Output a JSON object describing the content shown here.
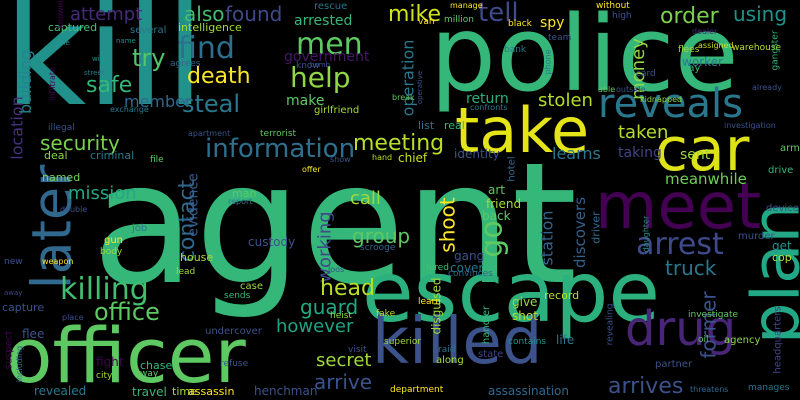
{
  "words": [
    {
      "text": "agent",
      "color": "#35b779"
    },
    {
      "text": "kill",
      "color": "#21918c"
    },
    {
      "text": "police",
      "color": "#35b779"
    },
    {
      "text": "escape",
      "color": "#2cb17e"
    },
    {
      "text": "officer",
      "color": "#5ec962"
    },
    {
      "text": "take",
      "color": "#e5e419"
    },
    {
      "text": "meet",
      "color": "#440154"
    },
    {
      "text": "killed",
      "color": "#3b528b"
    },
    {
      "text": "plan",
      "color": "#22a884"
    },
    {
      "text": "car",
      "color": "#dde318"
    },
    {
      "text": "reveals",
      "color": "#2a788e"
    },
    {
      "text": "later",
      "color": "#31688e"
    },
    {
      "text": "drug",
      "color": "#482576"
    },
    {
      "text": "killing",
      "color": "#42be71"
    },
    {
      "text": "arrest",
      "color": "#3e4a89"
    },
    {
      "text": "information",
      "color": "#2d708e"
    },
    {
      "text": "help",
      "color": "#8fd744"
    },
    {
      "text": "men",
      "color": "#5ec962"
    },
    {
      "text": "find",
      "color": "#2d708e"
    },
    {
      "text": "death",
      "color": "#fde725"
    },
    {
      "text": "steal",
      "color": "#2a788e"
    },
    {
      "text": "safe",
      "color": "#35b779"
    },
    {
      "text": "try",
      "color": "#52c569"
    },
    {
      "text": "security",
      "color": "#7ad151"
    },
    {
      "text": "office",
      "color": "#5ec962"
    },
    {
      "text": "mission",
      "color": "#22a884"
    },
    {
      "text": "meeting",
      "color": "#b8de29"
    },
    {
      "text": "shoot",
      "color": "#fde725"
    },
    {
      "text": "go",
      "color": "#5ec962"
    },
    {
      "text": "contact",
      "color": "#31688e"
    },
    {
      "text": "working",
      "color": "#3e4a89"
    },
    {
      "text": "head",
      "color": "#b8de29"
    },
    {
      "text": "guard",
      "color": "#22a884"
    },
    {
      "text": "however",
      "color": "#20a386"
    },
    {
      "text": "secret",
      "color": "#9fda3a"
    },
    {
      "text": "arrive",
      "color": "#3b528b"
    },
    {
      "text": "arrives",
      "color": "#3b528b"
    },
    {
      "text": "former",
      "color": "#3b528b"
    },
    {
      "text": "truck",
      "color": "#2a788e"
    },
    {
      "text": "group",
      "color": "#5ec962"
    },
    {
      "text": "call",
      "color": "#a0da39"
    },
    {
      "text": "mike",
      "color": "#d2e21b"
    },
    {
      "text": "tell",
      "color": "#3e4a89"
    },
    {
      "text": "order",
      "color": "#7ad151"
    },
    {
      "text": "using",
      "color": "#21918c"
    },
    {
      "text": "money",
      "color": "#8fd744"
    },
    {
      "text": "operation",
      "color": "#2a788e"
    },
    {
      "text": "member",
      "color": "#31688e"
    },
    {
      "text": "attempt",
      "color": "#472a7a"
    },
    {
      "text": "also",
      "color": "#44bf70"
    },
    {
      "text": "found",
      "color": "#3e4a89"
    },
    {
      "text": "location",
      "color": "#46327e"
    },
    {
      "text": "building",
      "color": "#26828e"
    },
    {
      "text": "stolen",
      "color": "#b5de2b"
    },
    {
      "text": "taken",
      "color": "#b5de2b"
    },
    {
      "text": "learns",
      "color": "#2a788e"
    },
    {
      "text": "station",
      "color": "#32648e"
    },
    {
      "text": "discovers",
      "color": "#34608d"
    },
    {
      "text": "evidence",
      "color": "#365c8d"
    },
    {
      "text": "meanwhile",
      "color": "#6ece58"
    },
    {
      "text": "sent",
      "color": "#9fda3a"
    },
    {
      "text": "taking",
      "color": "#414487"
    },
    {
      "text": "arrested",
      "color": "#35b779"
    },
    {
      "text": "government",
      "color": "#481668"
    },
    {
      "text": "make",
      "color": "#5ec962"
    },
    {
      "text": "disguised",
      "color": "#9fda3a"
    },
    {
      "text": "return",
      "color": "#29af7f"
    },
    {
      "text": "identity",
      "color": "#3b528b"
    },
    {
      "text": "chief",
      "color": "#c8e020"
    },
    {
      "text": "girlfriend",
      "color": "#a5db36"
    },
    {
      "text": "list",
      "color": "#2c728e"
    },
    {
      "text": "real",
      "color": "#35b779"
    },
    {
      "text": "friend",
      "color": "#a5db36"
    },
    {
      "text": "back",
      "color": "#5ec962"
    },
    {
      "text": "art",
      "color": "#5ec962"
    },
    {
      "text": "driver",
      "color": "#2e6e8e"
    },
    {
      "text": "gang",
      "color": "#3b528b"
    },
    {
      "text": "cover",
      "color": "#2a788e"
    },
    {
      "text": "hotel",
      "color": "#31688e"
    },
    {
      "text": "captured",
      "color": "#44bf70"
    },
    {
      "text": "intelligence",
      "color": "#a0da39"
    },
    {
      "text": "rescue",
      "color": "#2a788e"
    },
    {
      "text": "several",
      "color": "#2a788e"
    },
    {
      "text": "agrees",
      "color": "#31688e"
    },
    {
      "text": "know",
      "color": "#3b528b"
    },
    {
      "text": "named",
      "color": "#7ad151"
    },
    {
      "text": "criminal",
      "color": "#2a788e"
    },
    {
      "text": "deal",
      "color": "#8fd744"
    },
    {
      "text": "spy",
      "color": "#fde725"
    },
    {
      "text": "black",
      "color": "#fde725"
    },
    {
      "text": "van",
      "color": "#fde725"
    },
    {
      "text": "million",
      "color": "#5ec962"
    },
    {
      "text": "bank",
      "color": "#2a788e"
    },
    {
      "text": "team",
      "color": "#3b528b"
    },
    {
      "text": "phone",
      "color": "#2a788e"
    },
    {
      "text": "worker",
      "color": "#2a788e"
    },
    {
      "text": "day",
      "color": "#35b779"
    },
    {
      "text": "flees",
      "color": "#9fda3a"
    },
    {
      "text": "warehouse",
      "color": "#b8de29"
    },
    {
      "text": "gangster",
      "color": "#35b779"
    },
    {
      "text": "assigned",
      "color": "#c8e020"
    },
    {
      "text": "high",
      "color": "#3b528b"
    },
    {
      "text": "without",
      "color": "#fde725"
    },
    {
      "text": "manage",
      "color": "#fde725"
    },
    {
      "text": "dealer",
      "color": "#482878"
    },
    {
      "text": "card",
      "color": "#3b528b"
    },
    {
      "text": "able",
      "color": "#5ec962"
    },
    {
      "text": "outside",
      "color": "#3b528b"
    },
    {
      "text": "already",
      "color": "#3b528b"
    },
    {
      "text": "kidnapped",
      "color": "#8fd744"
    },
    {
      "text": "investigation",
      "color": "#3b528b"
    },
    {
      "text": "arm",
      "color": "#5ec962"
    },
    {
      "text": "drive",
      "color": "#35b779"
    },
    {
      "text": "device",
      "color": "#3b528b"
    },
    {
      "text": "get",
      "color": "#21918c"
    },
    {
      "text": "cop",
      "color": "#b8de29"
    },
    {
      "text": "murder",
      "color": "#3b528b"
    },
    {
      "text": "partner",
      "color": "#3b528b"
    },
    {
      "text": "oil",
      "color": "#5ec962"
    },
    {
      "text": "agency",
      "color": "#8fd744"
    },
    {
      "text": "investigate",
      "color": "#5ec962"
    },
    {
      "text": "revealing",
      "color": "#3b528b"
    },
    {
      "text": "headquarters",
      "color": "#414487"
    },
    {
      "text": "manages",
      "color": "#2a788e"
    },
    {
      "text": "threatens",
      "color": "#31688e"
    },
    {
      "text": "including",
      "color": "#31688e"
    },
    {
      "text": "daughter",
      "color": "#21918c"
    },
    {
      "text": "record",
      "color": "#b8de29"
    },
    {
      "text": "give",
      "color": "#9fda3a"
    },
    {
      "text": "shot",
      "color": "#b8de29"
    },
    {
      "text": "handler",
      "color": "#35b779"
    },
    {
      "text": "life",
      "color": "#2a788e"
    },
    {
      "text": "contains",
      "color": "#21918c"
    },
    {
      "text": "state",
      "color": "#414487"
    },
    {
      "text": "assassination",
      "color": "#31688e"
    },
    {
      "text": "department",
      "color": "#fde725"
    },
    {
      "text": "along",
      "color": "#a5db36"
    },
    {
      "text": "raid",
      "color": "#2a788e"
    },
    {
      "text": "superior",
      "color": "#9fda3a"
    },
    {
      "text": "learn",
      "color": "#fde725"
    },
    {
      "text": "visit",
      "color": "#3b528b"
    },
    {
      "text": "fake",
      "color": "#b8de29"
    },
    {
      "text": "heist",
      "color": "#8fd744"
    },
    {
      "text": "case",
      "color": "#9fda3a"
    },
    {
      "text": "sends",
      "color": "#35b779"
    },
    {
      "text": "lead",
      "color": "#9fda3a"
    },
    {
      "text": "hired",
      "color": "#44bf70"
    },
    {
      "text": "convinces",
      "color": "#31688e"
    },
    {
      "text": "scrooge",
      "color": "#31688e"
    },
    {
      "text": "custody",
      "color": "#3b528b"
    },
    {
      "text": "house",
      "color": "#a5db36"
    },
    {
      "text": "man",
      "color": "#5ec962"
    },
    {
      "text": "report",
      "color": "#2a788e"
    },
    {
      "text": "loos",
      "color": "#3b528b"
    },
    {
      "text": "job",
      "color": "#2a788e"
    },
    {
      "text": "body",
      "color": "#9fda3a"
    },
    {
      "text": "gun",
      "color": "#fde725"
    },
    {
      "text": "weapon",
      "color": "#fde725"
    },
    {
      "text": "undercover",
      "color": "#3b528b"
    },
    {
      "text": "refuse",
      "color": "#3b528b"
    },
    {
      "text": "chase",
      "color": "#35b779"
    },
    {
      "text": "fight",
      "color": "#440154"
    },
    {
      "text": "city",
      "color": "#a5db36"
    },
    {
      "text": "way",
      "color": "#5ec962"
    },
    {
      "text": "travel",
      "color": "#35b779"
    },
    {
      "text": "time",
      "color": "#a5db36"
    },
    {
      "text": "assassin",
      "color": "#fde725"
    },
    {
      "text": "henchman",
      "color": "#3b528b"
    },
    {
      "text": "revealed",
      "color": "#2a788e"
    },
    {
      "text": "flee",
      "color": "#3b528b"
    },
    {
      "text": "suspect",
      "color": "#440154"
    },
    {
      "text": "capture",
      "color": "#3b528b"
    },
    {
      "text": "place",
      "color": "#3b528b"
    },
    {
      "text": "away",
      "color": "#414487"
    },
    {
      "text": "new",
      "color": "#3b528b"
    },
    {
      "text": "double",
      "color": "#3b528b"
    },
    {
      "text": "file",
      "color": "#5ec962"
    },
    {
      "text": "show",
      "color": "#3b528b"
    },
    {
      "text": "offer",
      "color": "#fde725"
    },
    {
      "text": "terrorist",
      "color": "#5ec962"
    },
    {
      "text": "apartment",
      "color": "#3b528b"
    },
    {
      "text": "hand",
      "color": "#b8de29"
    },
    {
      "text": "illegal",
      "color": "#3b528b"
    },
    {
      "text": "exchange",
      "color": "#2a788e"
    },
    {
      "text": "knowing",
      "color": "#440154"
    },
    {
      "text": "infiltrate",
      "color": "#440154"
    },
    {
      "text": "crime",
      "color": "#21918c"
    },
    {
      "text": "wife",
      "color": "#21918c"
    },
    {
      "text": "name",
      "color": "#21918c"
    },
    {
      "text": "street",
      "color": "#2a788e"
    },
    {
      "text": "bomb",
      "color": "#3b528b"
    },
    {
      "text": "break",
      "color": "#5ec962"
    },
    {
      "text": "confronts",
      "color": "#2a788e"
    },
    {
      "text": "operative",
      "color": "#3b528b"
    }
  ]
}
